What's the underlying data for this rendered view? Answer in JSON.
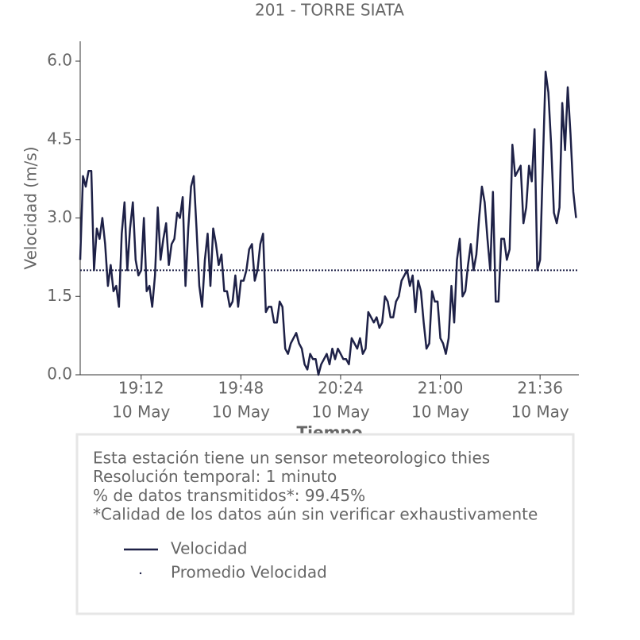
{
  "chart_data": {
    "type": "line",
    "title": "201 - TORRE SIATA",
    "ylabel": "Velocidad (m/s)",
    "xlabel": "Tiempo",
    "xlim": [
      "18:50",
      "21:50"
    ],
    "xticks": [
      {
        "value": "19:12",
        "label": "19:12",
        "date": "10 May"
      },
      {
        "value": "19:48",
        "label": "19:48",
        "date": "10 May"
      },
      {
        "value": "20:24",
        "label": "20:24",
        "date": "10 May"
      },
      {
        "value": "21:00",
        "label": "21:00",
        "date": "10 May"
      },
      {
        "value": "21:36",
        "label": "21:36",
        "date": "10 May"
      }
    ],
    "ylim": [
      0,
      6.38
    ],
    "yticks": [
      {
        "value": 0,
        "label": "0.0"
      },
      {
        "value": 1.5,
        "label": "1.5"
      },
      {
        "value": 3,
        "label": "3.0"
      },
      {
        "value": 4.5,
        "label": "4.5"
      },
      {
        "value": 6,
        "label": "6.0"
      }
    ],
    "x": [
      "18:50",
      "18:51",
      "18:52",
      "18:53",
      "18:54",
      "18:55",
      "18:56",
      "18:57",
      "18:58",
      "18:59",
      "19:00",
      "19:01",
      "19:02",
      "19:03",
      "19:04",
      "19:05",
      "19:06",
      "19:07",
      "19:08",
      "19:09",
      "19:10",
      "19:11",
      "19:12",
      "19:13",
      "19:14",
      "19:15",
      "19:16",
      "19:17",
      "19:18",
      "19:19",
      "19:20",
      "19:21",
      "19:22",
      "19:23",
      "19:24",
      "19:25",
      "19:26",
      "19:27",
      "19:28",
      "19:29",
      "19:30",
      "19:31",
      "19:32",
      "19:33",
      "19:34",
      "19:35",
      "19:36",
      "19:37",
      "19:38",
      "19:39",
      "19:40",
      "19:41",
      "19:42",
      "19:43",
      "19:44",
      "19:45",
      "19:46",
      "19:47",
      "19:48",
      "19:49",
      "19:50",
      "19:51",
      "19:52",
      "19:53",
      "19:54",
      "19:55",
      "19:56",
      "19:57",
      "19:58",
      "19:59",
      "20:00",
      "20:01",
      "20:02",
      "20:03",
      "20:04",
      "20:05",
      "20:06",
      "20:07",
      "20:08",
      "20:09",
      "20:10",
      "20:11",
      "20:12",
      "20:13",
      "20:14",
      "20:15",
      "20:16",
      "20:17",
      "20:18",
      "20:19",
      "20:20",
      "20:21",
      "20:22",
      "20:23",
      "20:24",
      "20:25",
      "20:26",
      "20:27",
      "20:28",
      "20:29",
      "20:30",
      "20:31",
      "20:32",
      "20:33",
      "20:34",
      "20:35",
      "20:36",
      "20:37",
      "20:38",
      "20:39",
      "20:40",
      "20:41",
      "20:42",
      "20:43",
      "20:44",
      "20:45",
      "20:46",
      "20:47",
      "20:48",
      "20:49",
      "20:50",
      "20:51",
      "20:52",
      "20:53",
      "20:54",
      "20:55",
      "20:56",
      "20:57",
      "20:58",
      "20:59",
      "21:00",
      "21:01",
      "21:02",
      "21:03",
      "21:04",
      "21:05",
      "21:06",
      "21:07",
      "21:08",
      "21:09",
      "21:10",
      "21:11",
      "21:12",
      "21:13",
      "21:14",
      "21:15",
      "21:16",
      "21:17",
      "21:18",
      "21:19",
      "21:20",
      "21:21",
      "21:22",
      "21:23",
      "21:24",
      "21:25",
      "21:26",
      "21:27",
      "21:28",
      "21:29",
      "21:30",
      "21:31",
      "21:32",
      "21:33",
      "21:34",
      "21:35",
      "21:36",
      "21:37",
      "21:38",
      "21:39",
      "21:40",
      "21:41",
      "21:42",
      "21:43",
      "21:44",
      "21:45",
      "21:46",
      "21:47",
      "21:48",
      "21:49"
    ],
    "series": [
      {
        "name": "Velocidad",
        "color": "#1e2147",
        "values": [
          2.2,
          3.8,
          3.6,
          3.9,
          3.9,
          2.0,
          2.8,
          2.6,
          3.0,
          2.5,
          1.7,
          2.1,
          1.6,
          1.7,
          1.3,
          2.7,
          3.3,
          2.0,
          2.8,
          3.3,
          2.2,
          1.9,
          2.0,
          3.0,
          1.6,
          1.7,
          1.3,
          1.9,
          3.2,
          2.2,
          2.6,
          2.9,
          2.1,
          2.5,
          2.6,
          3.1,
          3.0,
          3.4,
          1.7,
          2.8,
          3.6,
          3.8,
          2.8,
          1.7,
          1.3,
          2.2,
          2.7,
          1.7,
          2.8,
          2.5,
          2.1,
          2.3,
          1.6,
          1.6,
          1.3,
          1.4,
          1.9,
          1.3,
          1.8,
          1.8,
          2.0,
          2.4,
          2.5,
          1.8,
          2.0,
          2.5,
          2.7,
          1.2,
          1.3,
          1.3,
          1.0,
          1.0,
          1.4,
          1.3,
          0.5,
          0.4,
          0.6,
          0.7,
          0.8,
          0.6,
          0.5,
          0.2,
          0.1,
          0.4,
          0.3,
          0.3,
          0.0,
          0.2,
          0.3,
          0.4,
          0.2,
          0.5,
          0.3,
          0.5,
          0.4,
          0.3,
          0.3,
          0.2,
          0.7,
          0.6,
          0.5,
          0.7,
          0.4,
          0.5,
          1.2,
          1.1,
          1.0,
          1.1,
          0.9,
          1.0,
          1.5,
          1.4,
          1.1,
          1.1,
          1.4,
          1.5,
          1.8,
          1.9,
          2.0,
          1.7,
          1.9,
          1.2,
          1.8,
          1.6,
          1.0,
          0.5,
          0.6,
          1.6,
          1.4,
          1.4,
          0.7,
          0.6,
          0.4,
          0.7,
          1.7,
          1.0,
          2.2,
          2.6,
          1.5,
          1.6,
          2.1,
          2.5,
          2.0,
          2.3,
          3.0,
          3.6,
          3.3,
          2.6,
          2.0,
          3.5,
          1.4,
          1.4,
          2.6,
          2.6,
          2.2,
          2.4,
          4.4,
          3.8,
          3.9,
          4.0,
          2.9,
          3.2,
          4.0,
          3.7,
          4.7,
          2.0,
          2.2,
          4.0,
          5.8,
          5.4,
          4.4,
          3.1,
          2.9,
          3.2,
          5.2,
          4.3,
          5.5,
          4.6,
          3.5,
          3.0
        ]
      }
    ],
    "average": {
      "name": "Promedio Velocidad",
      "value": 2.0,
      "color": "#1e2147"
    },
    "info": [
      "Esta estación tiene un sensor meteorologico thies",
      "Resolución temporal: 1 minuto",
      "% de datos transmitidos*: 99.45%",
      "*Calidad de los datos aún sin verificar exhaustivamente"
    ]
  }
}
